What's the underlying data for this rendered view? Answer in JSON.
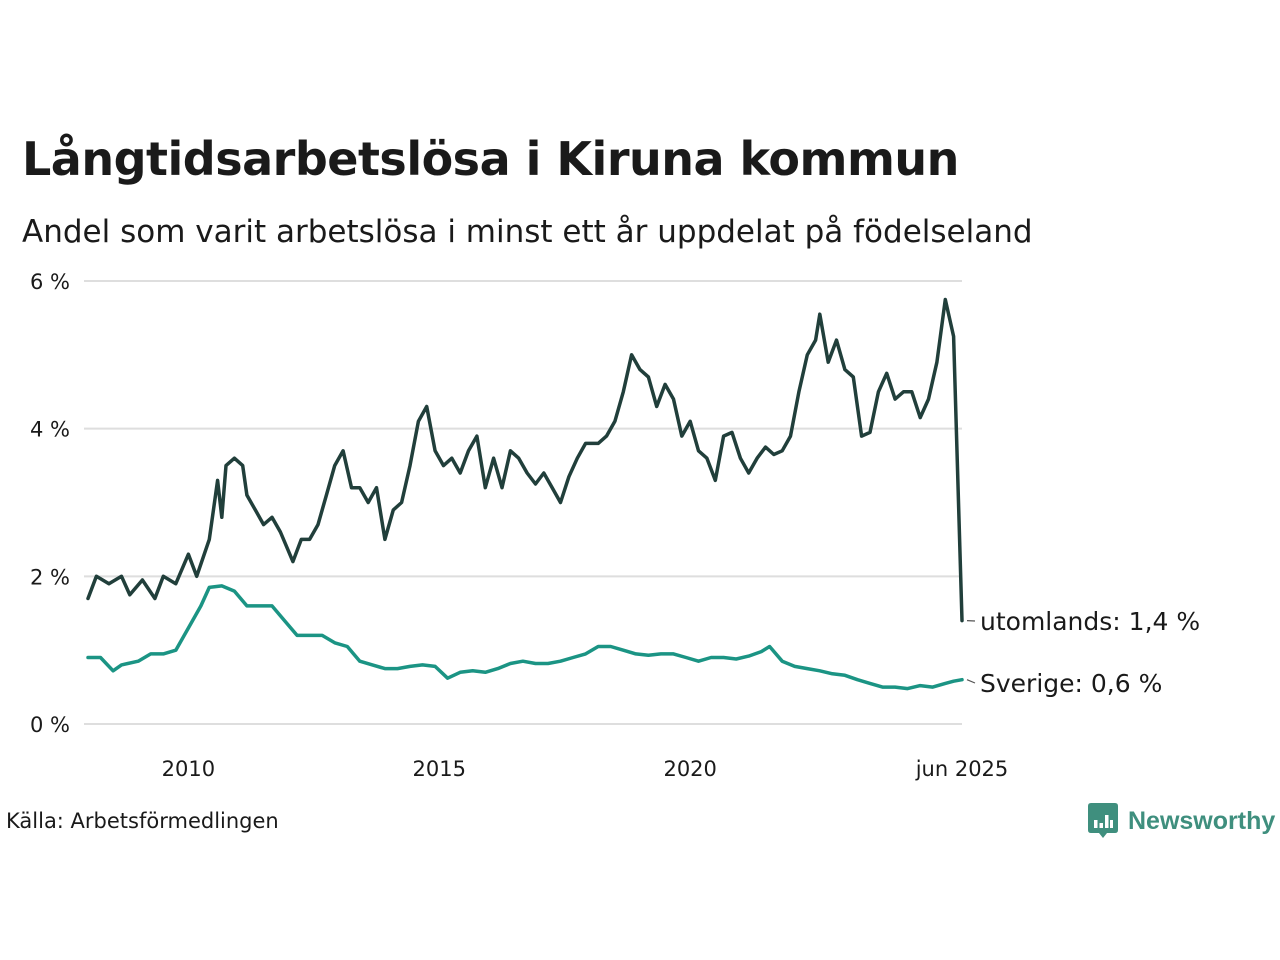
{
  "title": "Långtidsarbetslösa i Kiruna kommun",
  "subtitle": "Andel som varit arbetslösa i minst ett år uppdelat på födelseland",
  "source": "Källa: Arbetsförmedlingen",
  "logo": {
    "text": "Newsworthy",
    "icon": "bar-chart-speech-bubble-icon",
    "color": "#3f8f7e"
  },
  "chart_data": {
    "type": "line",
    "ylim": [
      0,
      6
    ],
    "y_ticks": [
      0,
      2,
      4,
      6
    ],
    "y_tick_labels": [
      "0 %",
      "2 %",
      "4 %",
      "6 %"
    ],
    "x_range": [
      "2008-01",
      "2025-06"
    ],
    "x_ticks": [
      "2010-01",
      "2015-01",
      "2020-01",
      "2025-06"
    ],
    "x_tick_labels": [
      "2010",
      "2015",
      "2020",
      "jun 2025"
    ],
    "grid": true,
    "legend": "end-of-line labels",
    "series": [
      {
        "name": "utomlands",
        "end_label": "utomlands: 1,4 %",
        "color": "#213f3b",
        "points": [
          [
            "2008-01",
            1.7
          ],
          [
            "2008-03",
            2.0
          ],
          [
            "2008-06",
            1.9
          ],
          [
            "2008-09",
            2.0
          ],
          [
            "2008-11",
            1.75
          ],
          [
            "2009-02",
            1.95
          ],
          [
            "2009-05",
            1.7
          ],
          [
            "2009-07",
            2.0
          ],
          [
            "2009-10",
            1.9
          ],
          [
            "2010-01",
            2.3
          ],
          [
            "2010-03",
            2.0
          ],
          [
            "2010-06",
            2.5
          ],
          [
            "2010-08",
            3.3
          ],
          [
            "2010-09",
            2.8
          ],
          [
            "2010-10",
            3.5
          ],
          [
            "2010-12",
            3.6
          ],
          [
            "2011-02",
            3.5
          ],
          [
            "2011-03",
            3.1
          ],
          [
            "2011-05",
            2.9
          ],
          [
            "2011-07",
            2.7
          ],
          [
            "2011-09",
            2.8
          ],
          [
            "2011-11",
            2.6
          ],
          [
            "2012-02",
            2.2
          ],
          [
            "2012-04",
            2.5
          ],
          [
            "2012-06",
            2.5
          ],
          [
            "2012-08",
            2.7
          ],
          [
            "2012-10",
            3.1
          ],
          [
            "2012-12",
            3.5
          ],
          [
            "2013-02",
            3.7
          ],
          [
            "2013-04",
            3.2
          ],
          [
            "2013-06",
            3.2
          ],
          [
            "2013-08",
            3.0
          ],
          [
            "2013-10",
            3.2
          ],
          [
            "2013-12",
            2.5
          ],
          [
            "2014-02",
            2.9
          ],
          [
            "2014-04",
            3.0
          ],
          [
            "2014-06",
            3.5
          ],
          [
            "2014-08",
            4.1
          ],
          [
            "2014-10",
            4.3
          ],
          [
            "2014-12",
            3.7
          ],
          [
            "2015-02",
            3.5
          ],
          [
            "2015-04",
            3.6
          ],
          [
            "2015-06",
            3.4
          ],
          [
            "2015-08",
            3.7
          ],
          [
            "2015-10",
            3.9
          ],
          [
            "2015-12",
            3.2
          ],
          [
            "2016-02",
            3.6
          ],
          [
            "2016-04",
            3.2
          ],
          [
            "2016-06",
            3.7
          ],
          [
            "2016-08",
            3.6
          ],
          [
            "2016-10",
            3.4
          ],
          [
            "2016-12",
            3.25
          ],
          [
            "2017-02",
            3.4
          ],
          [
            "2017-04",
            3.2
          ],
          [
            "2017-06",
            3.0
          ],
          [
            "2017-08",
            3.35
          ],
          [
            "2017-10",
            3.6
          ],
          [
            "2017-12",
            3.8
          ],
          [
            "2018-03",
            3.8
          ],
          [
            "2018-05",
            3.9
          ],
          [
            "2018-07",
            4.1
          ],
          [
            "2018-09",
            4.5
          ],
          [
            "2018-11",
            5.0
          ],
          [
            "2019-01",
            4.8
          ],
          [
            "2019-03",
            4.7
          ],
          [
            "2019-05",
            4.3
          ],
          [
            "2019-07",
            4.6
          ],
          [
            "2019-09",
            4.4
          ],
          [
            "2019-11",
            3.9
          ],
          [
            "2020-01",
            4.1
          ],
          [
            "2020-03",
            3.7
          ],
          [
            "2020-05",
            3.6
          ],
          [
            "2020-07",
            3.3
          ],
          [
            "2020-09",
            3.9
          ],
          [
            "2020-11",
            3.95
          ],
          [
            "2021-01",
            3.6
          ],
          [
            "2021-03",
            3.4
          ],
          [
            "2021-05",
            3.6
          ],
          [
            "2021-07",
            3.75
          ],
          [
            "2021-09",
            3.65
          ],
          [
            "2021-11",
            3.7
          ],
          [
            "2022-01",
            3.9
          ],
          [
            "2022-03",
            4.5
          ],
          [
            "2022-05",
            5.0
          ],
          [
            "2022-07",
            5.2
          ],
          [
            "2022-08",
            5.55
          ],
          [
            "2022-10",
            4.9
          ],
          [
            "2022-12",
            5.2
          ],
          [
            "2023-02",
            4.8
          ],
          [
            "2023-04",
            4.7
          ],
          [
            "2023-06",
            3.9
          ],
          [
            "2023-08",
            3.95
          ],
          [
            "2023-10",
            4.5
          ],
          [
            "2023-12",
            4.75
          ],
          [
            "2024-02",
            4.4
          ],
          [
            "2024-04",
            4.5
          ],
          [
            "2024-06",
            4.5
          ],
          [
            "2024-08",
            4.15
          ],
          [
            "2024-10",
            4.4
          ],
          [
            "2024-12",
            4.9
          ],
          [
            "2025-02",
            5.75
          ],
          [
            "2025-04",
            5.25
          ],
          [
            "2025-06",
            1.4
          ]
        ]
      },
      {
        "name": "Sverige",
        "end_label": "Sverige: 0,6 %",
        "color": "#1b9484",
        "points": [
          [
            "2008-01",
            0.9
          ],
          [
            "2008-04",
            0.9
          ],
          [
            "2008-07",
            0.72
          ],
          [
            "2008-09",
            0.8
          ],
          [
            "2009-01",
            0.85
          ],
          [
            "2009-04",
            0.95
          ],
          [
            "2009-07",
            0.95
          ],
          [
            "2009-10",
            1.0
          ],
          [
            "2010-01",
            1.3
          ],
          [
            "2010-04",
            1.6
          ],
          [
            "2010-06",
            1.85
          ],
          [
            "2010-09",
            1.87
          ],
          [
            "2010-12",
            1.8
          ],
          [
            "2011-03",
            1.6
          ],
          [
            "2011-06",
            1.6
          ],
          [
            "2011-09",
            1.6
          ],
          [
            "2011-12",
            1.4
          ],
          [
            "2012-03",
            1.2
          ],
          [
            "2012-06",
            1.2
          ],
          [
            "2012-09",
            1.2
          ],
          [
            "2012-12",
            1.1
          ],
          [
            "2013-03",
            1.05
          ],
          [
            "2013-06",
            0.85
          ],
          [
            "2013-09",
            0.8
          ],
          [
            "2013-12",
            0.75
          ],
          [
            "2014-03",
            0.75
          ],
          [
            "2014-06",
            0.78
          ],
          [
            "2014-09",
            0.8
          ],
          [
            "2014-12",
            0.78
          ],
          [
            "2015-03",
            0.62
          ],
          [
            "2015-06",
            0.7
          ],
          [
            "2015-09",
            0.72
          ],
          [
            "2015-12",
            0.7
          ],
          [
            "2016-03",
            0.75
          ],
          [
            "2016-06",
            0.82
          ],
          [
            "2016-09",
            0.85
          ],
          [
            "2016-12",
            0.82
          ],
          [
            "2017-03",
            0.82
          ],
          [
            "2017-06",
            0.85
          ],
          [
            "2017-09",
            0.9
          ],
          [
            "2017-12",
            0.95
          ],
          [
            "2018-03",
            1.05
          ],
          [
            "2018-06",
            1.05
          ],
          [
            "2018-09",
            1.0
          ],
          [
            "2018-12",
            0.95
          ],
          [
            "2019-03",
            0.93
          ],
          [
            "2019-06",
            0.95
          ],
          [
            "2019-09",
            0.95
          ],
          [
            "2019-12",
            0.9
          ],
          [
            "2020-03",
            0.85
          ],
          [
            "2020-06",
            0.9
          ],
          [
            "2020-09",
            0.9
          ],
          [
            "2020-12",
            0.88
          ],
          [
            "2021-03",
            0.92
          ],
          [
            "2021-06",
            0.98
          ],
          [
            "2021-08",
            1.05
          ],
          [
            "2021-11",
            0.85
          ],
          [
            "2022-02",
            0.78
          ],
          [
            "2022-05",
            0.75
          ],
          [
            "2022-08",
            0.72
          ],
          [
            "2022-11",
            0.68
          ],
          [
            "2023-02",
            0.66
          ],
          [
            "2023-05",
            0.6
          ],
          [
            "2023-08",
            0.55
          ],
          [
            "2023-11",
            0.5
          ],
          [
            "2024-02",
            0.5
          ],
          [
            "2024-05",
            0.48
          ],
          [
            "2024-08",
            0.52
          ],
          [
            "2024-11",
            0.5
          ],
          [
            "2025-02",
            0.55
          ],
          [
            "2025-04",
            0.58
          ],
          [
            "2025-06",
            0.6
          ]
        ]
      }
    ]
  }
}
